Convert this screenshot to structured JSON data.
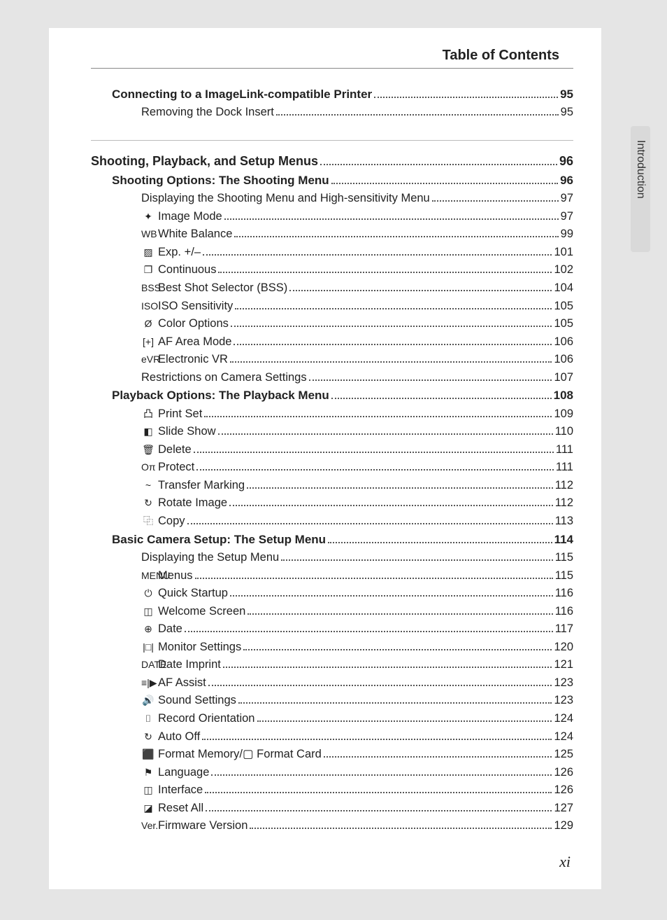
{
  "header": {
    "title": "Table of Contents"
  },
  "sidebar": {
    "label": "Introduction"
  },
  "footer": {
    "pageNumber": "xi"
  },
  "toc": [
    {
      "level": 1,
      "icon": "",
      "label": "Connecting to a ImageLink-compatible Printer",
      "page": "95"
    },
    {
      "level": 2,
      "icon": "",
      "label": "Removing the Dock Insert",
      "page": "95"
    },
    {
      "rule": true
    },
    {
      "level": 0,
      "icon": "",
      "label": "Shooting, Playback, and Setup Menus",
      "page": "96"
    },
    {
      "level": 1,
      "icon": "",
      "label": "Shooting Options: The Shooting Menu",
      "page": "96"
    },
    {
      "level": 2,
      "icon": "",
      "label": "Displaying the Shooting Menu and High-sensitivity Menu",
      "page": "97"
    },
    {
      "level": 2,
      "icon": "✦",
      "label": "Image Mode",
      "page": "97"
    },
    {
      "level": 2,
      "icon": "WB",
      "label": "White Balance",
      "page": "99"
    },
    {
      "level": 2,
      "icon": "▨",
      "label": "Exp. +/–",
      "page": "101"
    },
    {
      "level": 2,
      "icon": "❐",
      "label": "Continuous",
      "page": "102"
    },
    {
      "level": 2,
      "icon": "BSS",
      "label": "Best Shot Selector (BSS)",
      "page": "104"
    },
    {
      "level": 2,
      "icon": "ISO",
      "label": "ISO Sensitivity",
      "page": "105"
    },
    {
      "level": 2,
      "icon": "Ø",
      "label": "Color Options",
      "page": "105"
    },
    {
      "level": 2,
      "icon": "[+]",
      "label": "AF Area Mode",
      "page": "106"
    },
    {
      "level": 2,
      "icon": "eVR",
      "label": "Electronic VR",
      "page": "106"
    },
    {
      "level": 2,
      "icon": "",
      "label": "Restrictions on Camera Settings",
      "page": "107"
    },
    {
      "level": 1,
      "icon": "",
      "label": "Playback Options: The Playback Menu",
      "page": "108"
    },
    {
      "level": 2,
      "icon": "凸",
      "label": "Print Set",
      "page": "109"
    },
    {
      "level": 2,
      "icon": "◧",
      "label": "Slide Show",
      "page": "110"
    },
    {
      "level": 2,
      "icon": "🗑",
      "label": "Delete",
      "page": "111"
    },
    {
      "level": 2,
      "icon": "Oπ",
      "label": "Protect",
      "page": "111"
    },
    {
      "level": 2,
      "icon": "~",
      "label": "Transfer Marking",
      "page": "112"
    },
    {
      "level": 2,
      "icon": "↻",
      "label": "Rotate Image",
      "page": "112"
    },
    {
      "level": 2,
      "icon": "⿻",
      "label": "Copy",
      "page": "113"
    },
    {
      "level": 1,
      "icon": "",
      "label": "Basic Camera Setup: The Setup Menu",
      "page": "114"
    },
    {
      "level": 2,
      "icon": "",
      "label": "Displaying the Setup Menu",
      "page": "115"
    },
    {
      "level": 2,
      "icon": "MENU",
      "label": "Menus",
      "page": "115"
    },
    {
      "level": 2,
      "icon": "⏻",
      "label": "Quick Startup",
      "page": "116"
    },
    {
      "level": 2,
      "icon": "◫",
      "label": "Welcome Screen",
      "page": "116"
    },
    {
      "level": 2,
      "icon": "⊕",
      "label": "Date",
      "page": "117"
    },
    {
      "level": 2,
      "icon": "|□|",
      "label": "Monitor Settings",
      "page": "120"
    },
    {
      "level": 2,
      "icon": "DATE",
      "label": "Date Imprint",
      "page": "121"
    },
    {
      "level": 2,
      "icon": "≡|▶",
      "label": "AF Assist",
      "page": "123"
    },
    {
      "level": 2,
      "icon": "🔊",
      "label": "Sound Settings",
      "page": "123"
    },
    {
      "level": 2,
      "icon": "⌷",
      "label": "Record Orientation",
      "page": "124"
    },
    {
      "level": 2,
      "icon": "↻",
      "label": "Auto Off",
      "page": "124"
    },
    {
      "level": 2,
      "icon": "⬛",
      "label": "Format Memory/▢ Format Card",
      "page": "125"
    },
    {
      "level": 2,
      "icon": "⚑",
      "label": "Language",
      "page": "126"
    },
    {
      "level": 2,
      "icon": "◫",
      "label": "Interface",
      "page": "126"
    },
    {
      "level": 2,
      "icon": "◪",
      "label": "Reset All",
      "page": "127"
    },
    {
      "level": 2,
      "icon": "Ver.",
      "label": "Firmware Version",
      "page": "129"
    }
  ],
  "style": {
    "page_bg": "#ffffff",
    "outer_bg": "#e5e5e5",
    "text_color": "#222222",
    "dot_color": "#555555",
    "tab_bg": "#d9d9d9",
    "font_sizes": {
      "lvl0": 18,
      "lvl1": 17,
      "lvl2": 16.5,
      "header": 20,
      "footer": 22
    }
  }
}
